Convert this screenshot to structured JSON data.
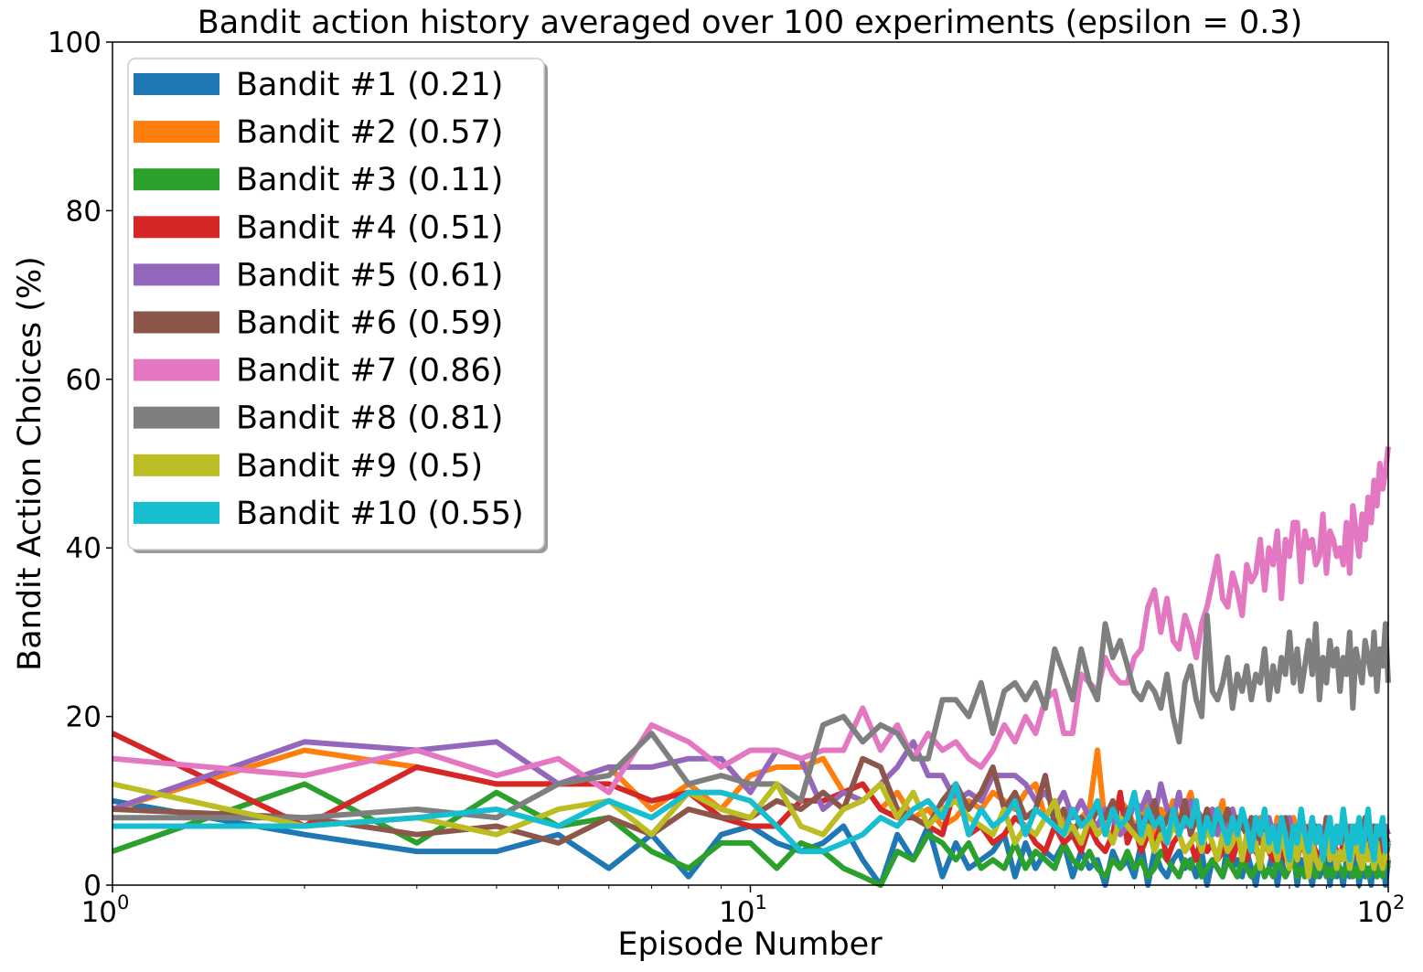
{
  "chart_data": {
    "type": "line",
    "title": "Bandit action history averaged over 100 experiments (epsilon = 0.3)",
    "xlabel": "Episode Number",
    "ylabel": "Bandit Action Choices (%)",
    "xscale": "log",
    "xlim": [
      1,
      100
    ],
    "ylim": [
      0,
      100
    ],
    "x_ticks": [
      {
        "value": 1,
        "base": "10",
        "exp": "0"
      },
      {
        "value": 10,
        "base": "10",
        "exp": "1"
      },
      {
        "value": 100,
        "base": "10",
        "exp": "2"
      }
    ],
    "y_ticks": [
      "0",
      "20",
      "40",
      "60",
      "80",
      "100"
    ],
    "grid": false,
    "legend_position": "upper-left",
    "x": "episodes 1 to 100",
    "series": [
      {
        "name": "Bandit #1 (0.21)",
        "color": "#1f77b4",
        "values": [
          10,
          6,
          4,
          4,
          6,
          2,
          6,
          1,
          6,
          7,
          5,
          4,
          5,
          7,
          3,
          0,
          6,
          3,
          7,
          1,
          5,
          2,
          3,
          4,
          6,
          1,
          5,
          2,
          4,
          3,
          5,
          1,
          4,
          2,
          3,
          0,
          4,
          2,
          3,
          1,
          5,
          0,
          4,
          2,
          1,
          3,
          4,
          2,
          3,
          1,
          4,
          0,
          3,
          2,
          1,
          5,
          2,
          3,
          1,
          4,
          2,
          0,
          3,
          1,
          2,
          4,
          0,
          3,
          1,
          2,
          4,
          0,
          3,
          1,
          2,
          0,
          3,
          1,
          2,
          4,
          0,
          3,
          1,
          2,
          0,
          3,
          1,
          2,
          4,
          0,
          3,
          1,
          2,
          0,
          3,
          1,
          2,
          4,
          0,
          3
        ]
      },
      {
        "name": "Bandit #2 (0.57)",
        "color": "#ff7f0e",
        "values": [
          9,
          16,
          14,
          12,
          12,
          14,
          9,
          12,
          9,
          13,
          14,
          14,
          15,
          11,
          12,
          9,
          11,
          8,
          9,
          7,
          8,
          10,
          9,
          11,
          10,
          9,
          11,
          12,
          8,
          10,
          7,
          6,
          8,
          9,
          16,
          7,
          8,
          10,
          9,
          7,
          8,
          10,
          6,
          9,
          8,
          10,
          7,
          9,
          11,
          8,
          6,
          9,
          7,
          8,
          10,
          6,
          9,
          7,
          8,
          6,
          7,
          5,
          8,
          6,
          7,
          5,
          8,
          6,
          7,
          5,
          8,
          6,
          7,
          5,
          6,
          8,
          5,
          7,
          6,
          5,
          7,
          6,
          5,
          7,
          6,
          5,
          7,
          6,
          5,
          7,
          6,
          5,
          7,
          6,
          5,
          7,
          6,
          5,
          7,
          6
        ]
      },
      {
        "name": "Bandit #3 (0.11)",
        "color": "#2ca02c",
        "values": [
          4,
          12,
          5,
          11,
          7,
          8,
          4,
          2,
          5,
          5,
          2,
          5,
          4,
          2,
          1,
          0,
          4,
          3,
          6,
          5,
          3,
          5,
          2,
          3,
          2,
          5,
          2,
          4,
          3,
          2,
          5,
          3,
          2,
          4,
          2,
          1,
          3,
          2,
          4,
          2,
          3,
          1,
          2,
          4,
          3,
          2,
          1,
          3,
          2,
          4,
          1,
          2,
          3,
          2,
          1,
          3,
          2,
          1,
          3,
          2,
          1,
          2,
          3,
          1,
          2,
          1,
          3,
          2,
          1,
          2,
          3,
          1,
          2,
          1,
          3,
          2,
          1,
          2,
          3,
          1,
          2,
          1,
          3,
          2,
          1,
          2,
          3,
          1,
          2,
          1,
          3,
          2,
          1,
          2,
          3,
          1,
          2,
          1,
          3,
          2
        ]
      },
      {
        "name": "Bandit #4 (0.51)",
        "color": "#d62728",
        "values": [
          18,
          7,
          14,
          12,
          12,
          12,
          10,
          11,
          8,
          7,
          7,
          10,
          10,
          11,
          12,
          9,
          8,
          8,
          7,
          6,
          12,
          6,
          7,
          5,
          6,
          8,
          7,
          5,
          4,
          7,
          5,
          6,
          4,
          7,
          5,
          4,
          6,
          11,
          5,
          7,
          4,
          6,
          5,
          7,
          3,
          5,
          6,
          4,
          5,
          3,
          6,
          4,
          5,
          3,
          4,
          6,
          3,
          5,
          4,
          3,
          5,
          4,
          3,
          5,
          4,
          3,
          5,
          4,
          3,
          5,
          4,
          3,
          5,
          4,
          3,
          5,
          4,
          3,
          5,
          4,
          3,
          5,
          4,
          3,
          5,
          4,
          3,
          5,
          4,
          3,
          5,
          4,
          3,
          5,
          4,
          3,
          5,
          4,
          3,
          5
        ]
      },
      {
        "name": "Bandit #5 (0.61)",
        "color": "#9467bd",
        "values": [
          9,
          17,
          16,
          17,
          12,
          14,
          14,
          15,
          15,
          11,
          16,
          15,
          9,
          11,
          10,
          12,
          14,
          17,
          13,
          13,
          10,
          11,
          10,
          13,
          13,
          13,
          12,
          10,
          11,
          9,
          11,
          8,
          10,
          8,
          7,
          9,
          8,
          6,
          7,
          10,
          9,
          11,
          8,
          12,
          9,
          8,
          11,
          7,
          10,
          9,
          8,
          7,
          9,
          6,
          8,
          7,
          9,
          6,
          8,
          7,
          6,
          8,
          7,
          5,
          8,
          6,
          7,
          5,
          6,
          8,
          5,
          7,
          6,
          5,
          7,
          6,
          5,
          7,
          6,
          5,
          7,
          6,
          5,
          7,
          6,
          5,
          7,
          6,
          5,
          7,
          6,
          5,
          7,
          6,
          5,
          7,
          6,
          5,
          7,
          6
        ]
      },
      {
        "name": "Bandit #6 (0.59)",
        "color": "#8c564b",
        "values": [
          9,
          8,
          6,
          7,
          5,
          8,
          6,
          9,
          8,
          8,
          10,
          9,
          11,
          9,
          15,
          14,
          9,
          8,
          7,
          10,
          12,
          9,
          11,
          14,
          9,
          11,
          8,
          9,
          13,
          7,
          9,
          6,
          8,
          7,
          9,
          8,
          10,
          7,
          9,
          6,
          8,
          7,
          10,
          6,
          8,
          9,
          7,
          10,
          6,
          8,
          7,
          9,
          6,
          8,
          7,
          9,
          6,
          8,
          7,
          6,
          8,
          7,
          5,
          8,
          6,
          7,
          5,
          6,
          8,
          5,
          7,
          6,
          5,
          7,
          6,
          5,
          7,
          6,
          5,
          8,
          6,
          5,
          7,
          6,
          5,
          7,
          6,
          5,
          7,
          6,
          5,
          8,
          6,
          5,
          7,
          6,
          5,
          7,
          6,
          5
        ]
      },
      {
        "name": "Bandit #7 (0.86)",
        "color": "#e377c2",
        "values": [
          15,
          13,
          16,
          13,
          15,
          11,
          19,
          17,
          14,
          16,
          16,
          15,
          16,
          16,
          21,
          16,
          19,
          15,
          18,
          16,
          17,
          15,
          14,
          16,
          19,
          17,
          20,
          18,
          22,
          23,
          18,
          18,
          25,
          24,
          23,
          27,
          25,
          24,
          24,
          27,
          28,
          33,
          35,
          30,
          34,
          29,
          28,
          32,
          30,
          27,
          31,
          33,
          36,
          39,
          34,
          33,
          37,
          35,
          32,
          38,
          36,
          37,
          41,
          35,
          40,
          38,
          42,
          34,
          41,
          39,
          43,
          43,
          36,
          42,
          40,
          41,
          38,
          39,
          44,
          37,
          42,
          41,
          39,
          40,
          38,
          43,
          37,
          45,
          42,
          39,
          44,
          41,
          46,
          43,
          48,
          45,
          50,
          47,
          49,
          52
        ]
      },
      {
        "name": "Bandit #8 (0.81)",
        "color": "#7f7f7f",
        "values": [
          8,
          8,
          9,
          8,
          12,
          13,
          18,
          12,
          13,
          12,
          12,
          10,
          19,
          20,
          17,
          19,
          18,
          15,
          15,
          22,
          22,
          20,
          24,
          18,
          23,
          24,
          22,
          24,
          21,
          28,
          25,
          22,
          28,
          24,
          22,
          31,
          27,
          29,
          26,
          23,
          22,
          24,
          23,
          21,
          25,
          20,
          17,
          24,
          26,
          22,
          20,
          32,
          23,
          22,
          24,
          27,
          21,
          25,
          23,
          26,
          22,
          25,
          24,
          28,
          22,
          26,
          23,
          27,
          25,
          30,
          24,
          28,
          23,
          26,
          29,
          25,
          31,
          22,
          27,
          24,
          29,
          26,
          28,
          23,
          27,
          25,
          30,
          21,
          28,
          26,
          24,
          29,
          27,
          25,
          30,
          23,
          28,
          26,
          31,
          24
        ]
      },
      {
        "name": "Bandit #9 (0.5)",
        "color": "#bcbd22",
        "values": [
          12,
          7,
          8,
          6,
          9,
          10,
          6,
          11,
          9,
          8,
          12,
          7,
          6,
          9,
          10,
          12,
          8,
          11,
          7,
          9,
          10,
          8,
          7,
          6,
          9,
          5,
          7,
          6,
          8,
          10,
          6,
          7,
          5,
          8,
          6,
          7,
          5,
          8,
          7,
          6,
          5,
          7,
          4,
          6,
          5,
          7,
          6,
          4,
          5,
          6,
          4,
          7,
          5,
          3,
          6,
          4,
          5,
          7,
          3,
          6,
          4,
          5,
          2,
          6,
          4,
          5,
          3,
          6,
          4,
          2,
          5,
          3,
          6,
          4,
          1,
          5,
          3,
          2,
          4,
          6,
          3,
          5,
          2,
          4,
          3,
          5,
          2,
          4,
          6,
          3,
          2,
          5,
          3,
          4,
          2,
          5,
          3,
          2,
          4,
          3
        ]
      },
      {
        "name": "Bandit #10 (0.55)",
        "color": "#17becf",
        "values": [
          7,
          7,
          8,
          9,
          7,
          10,
          8,
          11,
          11,
          10,
          7,
          4,
          4,
          5,
          6,
          8,
          7,
          9,
          10,
          8,
          12,
          6,
          9,
          7,
          8,
          10,
          6,
          9,
          8,
          7,
          6,
          9,
          7,
          8,
          10,
          6,
          9,
          7,
          8,
          11,
          6,
          9,
          7,
          8,
          5,
          9,
          6,
          8,
          7,
          10,
          5,
          8,
          6,
          9,
          7,
          5,
          8,
          6,
          9,
          7,
          4,
          8,
          6,
          9,
          5,
          7,
          4,
          8,
          6,
          3,
          7,
          5,
          9,
          6,
          4,
          8,
          5,
          7,
          3,
          6,
          8,
          4,
          7,
          5,
          9,
          6,
          3,
          7,
          5,
          8,
          4,
          6,
          9,
          5,
          3,
          7,
          6,
          8,
          4,
          5
        ]
      }
    ]
  }
}
